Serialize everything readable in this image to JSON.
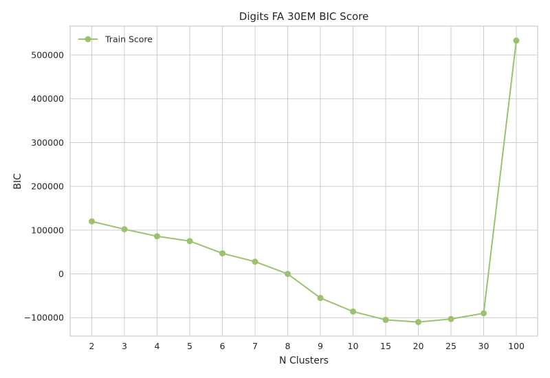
{
  "chart_data": {
    "type": "line",
    "title": "Digits FA 30EM BIC Score",
    "xlabel": "N Clusters",
    "ylabel": "BIC",
    "categories": [
      "2",
      "3",
      "4",
      "5",
      "6",
      "7",
      "8",
      "9",
      "10",
      "15",
      "20",
      "25",
      "30",
      "100"
    ],
    "series": [
      {
        "name": "Train Score",
        "color": "#9ac26e",
        "values": [
          120000,
          102000,
          86000,
          75000,
          47000,
          28000,
          0,
          -55000,
          -86000,
          -105000,
          -110000,
          -103000,
          -90000,
          533000
        ]
      }
    ],
    "yticks": [
      -100000,
      0,
      100000,
      200000,
      300000,
      400000,
      500000
    ],
    "ytick_labels": [
      "−100000",
      "0",
      "100000",
      "200000",
      "300000",
      "400000",
      "500000"
    ],
    "ylim": [
      -142000,
      566000
    ],
    "grid": true,
    "legend_position": "top-left"
  }
}
